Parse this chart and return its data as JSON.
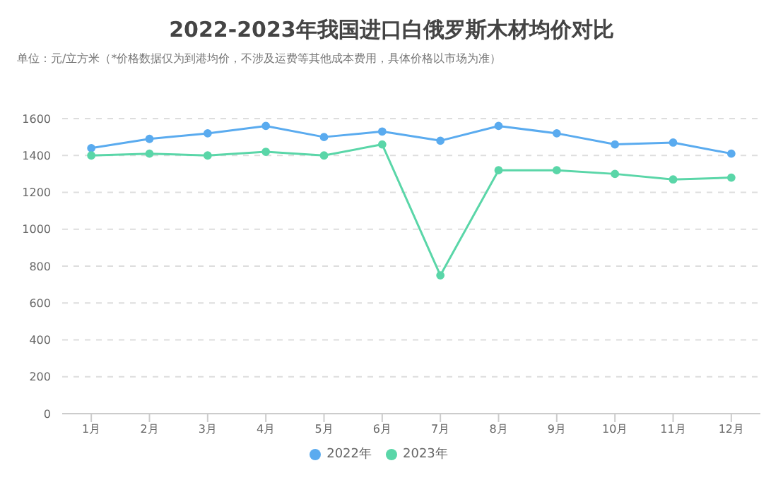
{
  "chart_data": {
    "type": "line",
    "title": "2022-2023年我国进口白俄罗斯木材均价对比",
    "subtitle": "单位：元/立方米（*价格数据仅为到港均价，不涉及运费等其他成本费用，具体价格以市场为准）",
    "categories": [
      "1月",
      "2月",
      "3月",
      "4月",
      "5月",
      "6月",
      "7月",
      "8月",
      "9月",
      "10月",
      "11月",
      "12月"
    ],
    "series": [
      {
        "name": "2022年",
        "color": "#5aabef",
        "values": [
          1440,
          1490,
          1520,
          1560,
          1500,
          1530,
          1480,
          1560,
          1520,
          1460,
          1470,
          1410
        ]
      },
      {
        "name": "2023年",
        "color": "#5ad6a8",
        "values": [
          1400,
          1410,
          1400,
          1420,
          1400,
          1460,
          750,
          1320,
          1320,
          1300,
          1270,
          1280
        ]
      }
    ],
    "ylim": [
      0,
      1600
    ],
    "yticks": [
      0,
      200,
      400,
      600,
      800,
      1000,
      1200,
      1400,
      1600
    ],
    "grid": "y",
    "legend": "bottom",
    "marker": "circle",
    "line_style": "solid"
  }
}
